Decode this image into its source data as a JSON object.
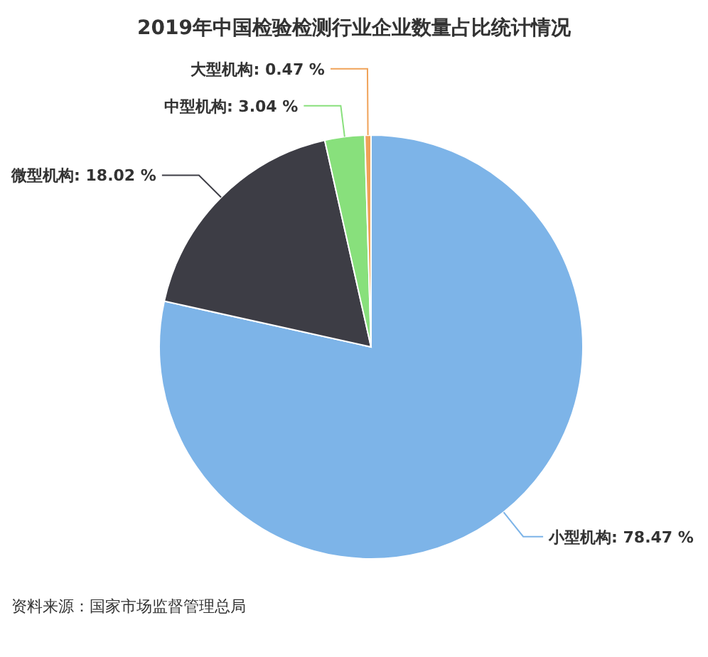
{
  "chart_data": {
    "type": "pie",
    "title": "2019年中国检验检测行业企业数量占比统计情况",
    "categories": [
      "小型机构",
      "微型机构",
      "中型机构",
      "大型机构"
    ],
    "values": [
      78.47,
      18.02,
      3.04,
      0.47
    ],
    "colors": [
      "#7db4e8",
      "#3d3d45",
      "#88e07c",
      "#f0a258"
    ],
    "value_labels": [
      ": 78.47 %",
      ": 18.02 %",
      ": 3.04 %",
      ": 0.47 %"
    ],
    "annotations": [
      "资料来源：国家市场监督管理总局"
    ]
  }
}
